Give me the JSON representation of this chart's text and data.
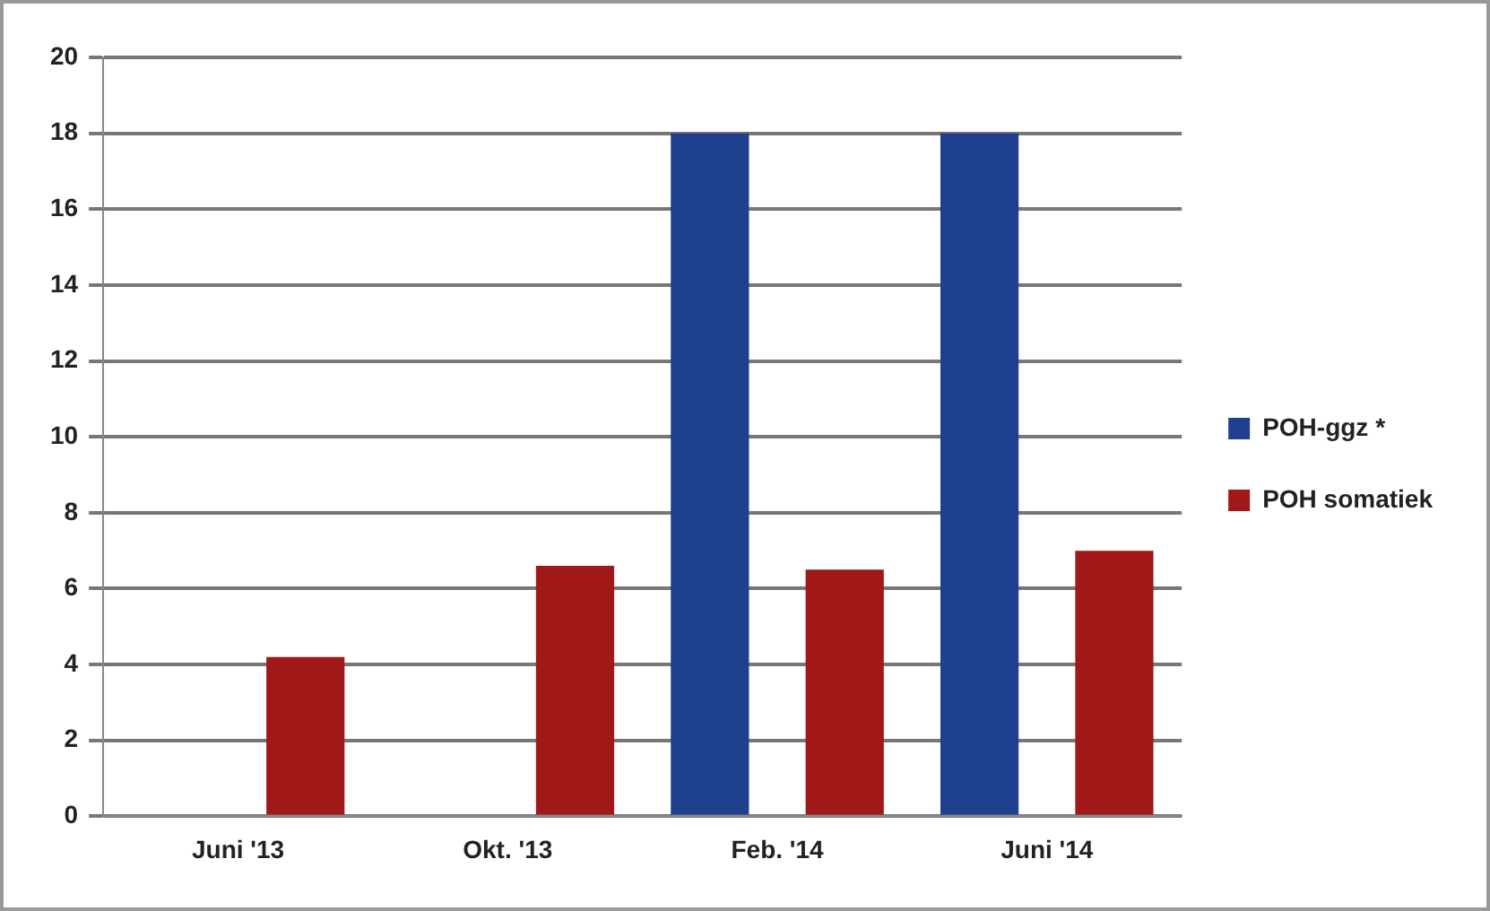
{
  "chart_data": {
    "type": "bar",
    "categories": [
      "Juni '13",
      "Okt. '13",
      "Feb. '14",
      "Juni '14"
    ],
    "series": [
      {
        "name": "POH-ggz *",
        "color": "#1f3f8f",
        "values": [
          null,
          null,
          18,
          18
        ]
      },
      {
        "name": "POH somatiek",
        "color": "#a01818",
        "values": [
          4.2,
          6.6,
          6.5,
          7.0
        ]
      }
    ],
    "ylim": [
      0,
      20
    ],
    "yticks": [
      0,
      2,
      4,
      6,
      8,
      10,
      12,
      14,
      16,
      18,
      20
    ],
    "grid": "y",
    "legend": "right"
  }
}
